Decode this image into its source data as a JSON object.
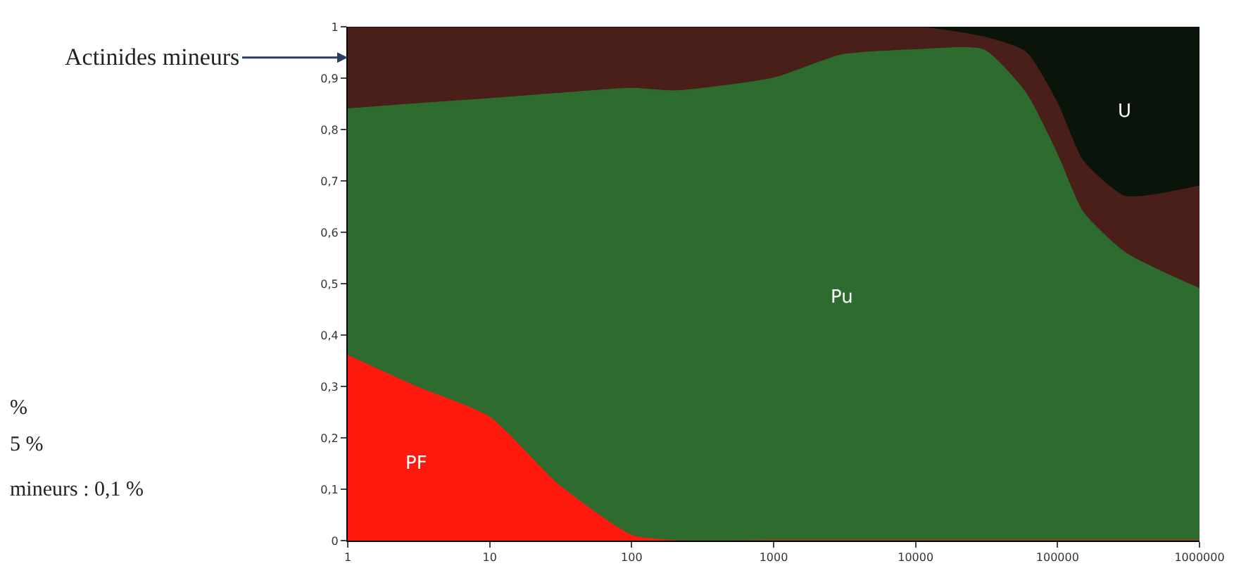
{
  "chart_data": {
    "type": "area",
    "stacked": true,
    "log": "x",
    "x": [
      1,
      3,
      10,
      30,
      100,
      200,
      1000,
      3000,
      10000,
      30000,
      60000,
      100000,
      150000,
      300000,
      1000000
    ],
    "series": [
      {
        "name": "PF",
        "color": "#ff1a0f",
        "values": [
          0.36,
          0.3,
          0.24,
          0.11,
          0.01,
          0,
          0,
          0,
          0,
          0,
          0,
          0,
          0,
          0,
          0
        ]
      },
      {
        "name": "Pu",
        "color": "#2e6b2e",
        "values": [
          0.48,
          0.55,
          0.62,
          0.76,
          0.87,
          0.875,
          0.9,
          0.945,
          0.955,
          0.955,
          0.87,
          0.75,
          0.64,
          0.56,
          0.49
        ]
      },
      {
        "color": "#4a1f1a",
        "values": [
          0.16,
          0.15,
          0.14,
          0.13,
          0.12,
          0.125,
          0.1,
          0.055,
          0.045,
          0.025,
          0.08,
          0.1,
          0.1,
          0.11,
          0.2
        ]
      },
      {
        "name": "U",
        "color": "#0a140a",
        "values": [
          0,
          0,
          0,
          0,
          0,
          0,
          0,
          0,
          0,
          0.02,
          0.05,
          0.15,
          0.26,
          0.33,
          0.31
        ]
      }
    ],
    "xlim": [
      1,
      1000000
    ],
    "xticks": [
      1,
      10,
      100,
      1000,
      10000,
      100000,
      1000000
    ],
    "ylim": [
      0,
      1
    ],
    "yticks": [
      0,
      {
        "value": 0.1,
        "label": "0,1"
      },
      {
        "value": 0.2,
        "label": "0,2"
      },
      {
        "value": 0.3,
        "label": "0,3"
      },
      {
        "value": 0.4,
        "label": "0,4"
      },
      {
        "value": 0.5,
        "label": "0,5"
      },
      {
        "value": 0.6,
        "label": "0,6"
      },
      {
        "value": 0.7,
        "label": "0,7"
      },
      {
        "value": 0.8,
        "label": "0,8"
      },
      {
        "value": 0.9,
        "label": "0,9"
      },
      1
    ],
    "legend": false,
    "annotations": [
      {
        "text": "Actinides mineurs",
        "x": 1,
        "y": 0.94
      },
      "%",
      "5 %",
      "mineurs : 0,1 %"
    ]
  }
}
